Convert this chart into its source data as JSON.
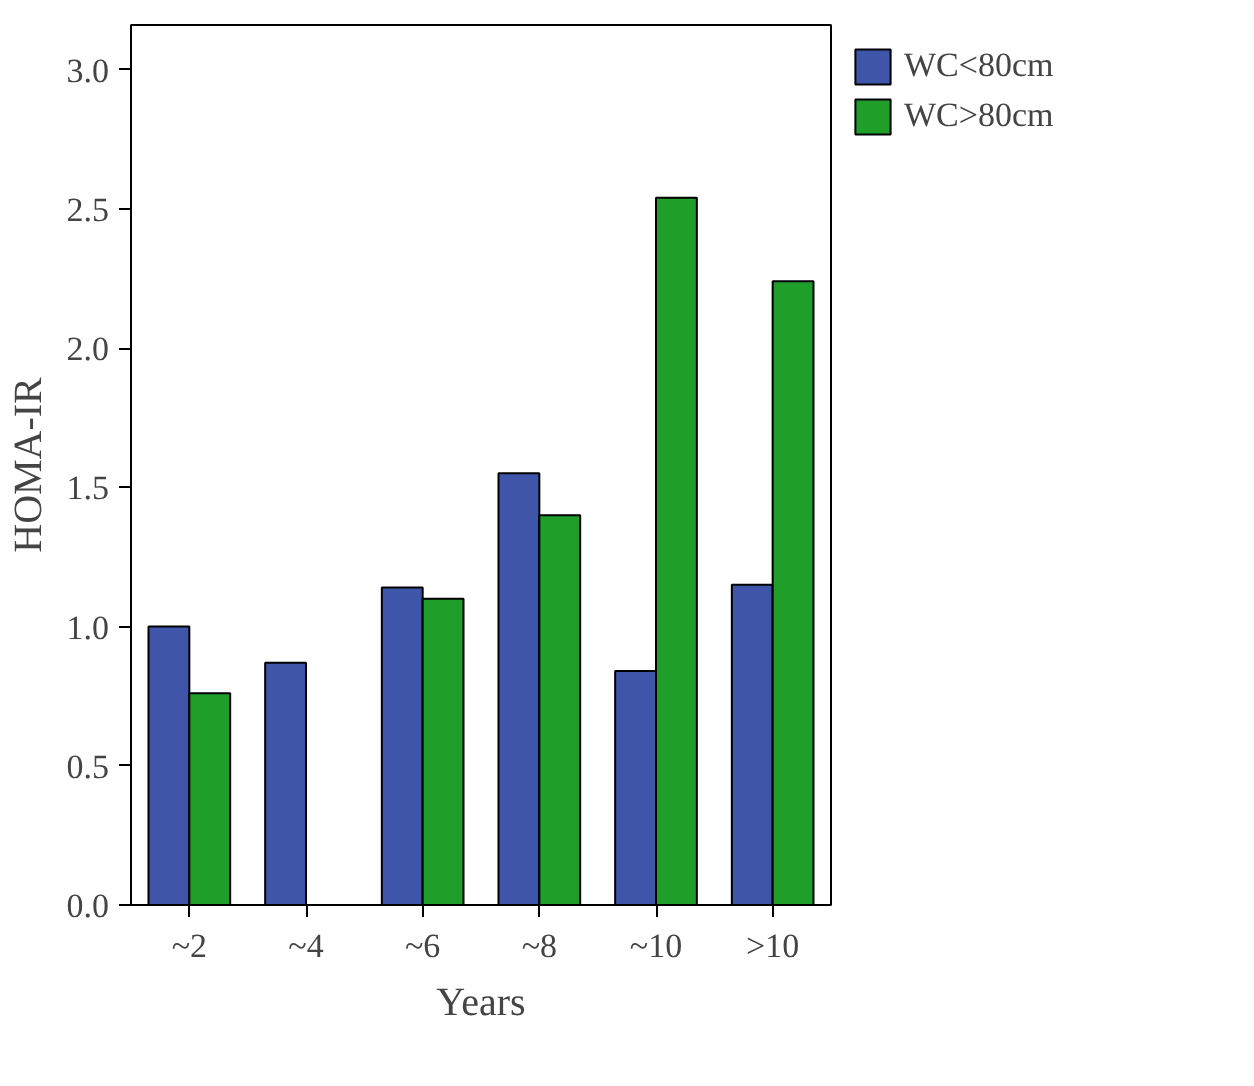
{
  "chart_data": {
    "type": "bar",
    "xlabel": "Years",
    "ylabel": "HOMA-IR",
    "categories": [
      "~2",
      "~4",
      "~6",
      "~8",
      "~10",
      ">10"
    ],
    "series": [
      {
        "name": "WC<80cm",
        "color": "#3f55a9",
        "values": [
          1.0,
          0.87,
          1.14,
          1.55,
          0.84,
          1.15
        ]
      },
      {
        "name": "WC>80cm",
        "color": "#1f9f2a",
        "values": [
          0.76,
          null,
          1.1,
          1.4,
          2.54,
          2.24
        ]
      }
    ],
    "ylim": [
      0,
      3.16
    ],
    "yticks": [
      {
        "value": 0,
        "label": "0.0"
      },
      {
        "value": 0.5,
        "label": "0.5"
      },
      {
        "value": 1,
        "label": "1.0"
      },
      {
        "value": 1.5,
        "label": "1.5"
      },
      {
        "value": 2,
        "label": "2.0"
      },
      {
        "value": 2.5,
        "label": "2.5"
      },
      {
        "value": 3,
        "label": "3.0"
      }
    ],
    "grid": false,
    "legend": "top right"
  }
}
